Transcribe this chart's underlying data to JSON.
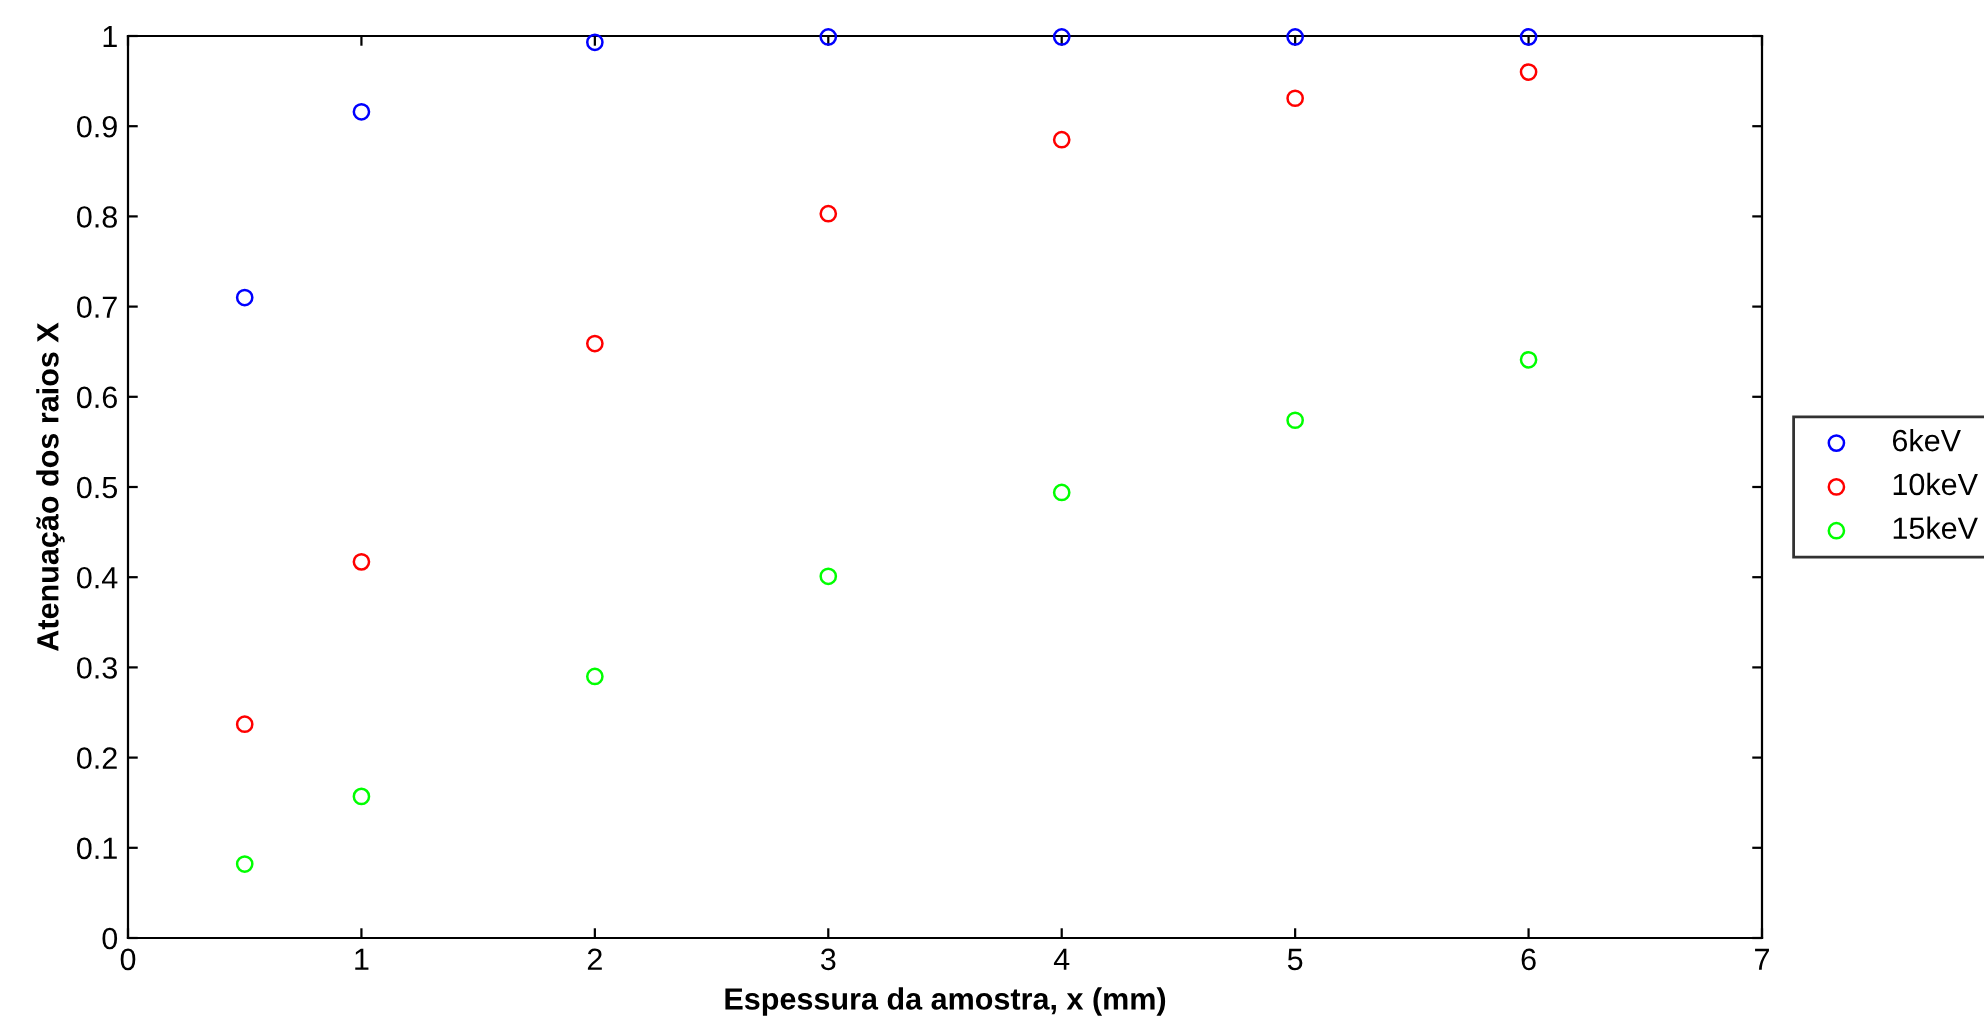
{
  "chart_data": {
    "type": "scatter",
    "xlabel": "Espessura da amostra, x (mm)",
    "ylabel": "Atenuação dos raios X",
    "x": [
      0.5,
      1,
      2,
      3,
      4,
      5,
      6
    ],
    "series": [
      {
        "name": "6keV",
        "color": "#0000ff",
        "values": [
          0.71,
          0.916,
          0.993,
          0.999,
          0.999,
          0.999,
          0.999
        ]
      },
      {
        "name": "10keV",
        "color": "#ff0000",
        "values": [
          0.237,
          0.417,
          0.659,
          0.803,
          0.885,
          0.931,
          0.96
        ]
      },
      {
        "name": "15keV",
        "color": "#00ff00",
        "values": [
          0.082,
          0.157,
          0.29,
          0.401,
          0.494,
          0.574,
          0.641
        ]
      }
    ],
    "xlim": [
      0,
      7
    ],
    "xticks": [
      0,
      1,
      2,
      3,
      4,
      5,
      6,
      7
    ],
    "ylim": [
      0,
      1
    ],
    "yticks": [
      0,
      0.1,
      0.2,
      0.3,
      0.4,
      0.5,
      0.6,
      0.7,
      0.8,
      0.9,
      1
    ],
    "grid": false,
    "legend": "right",
    "marker": "circle"
  }
}
